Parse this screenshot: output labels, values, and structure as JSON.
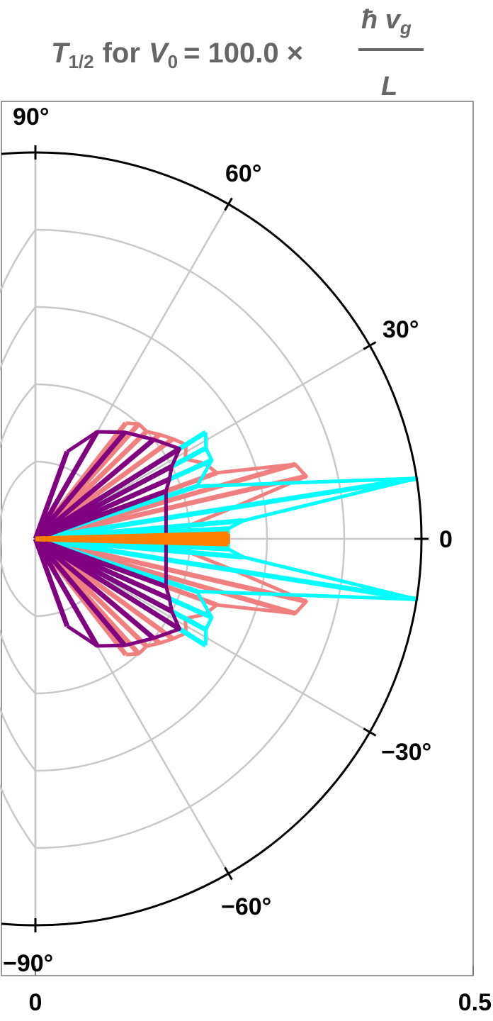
{
  "chart_data": {
    "type": "polar",
    "title": {
      "symbol": "T",
      "symbol_sub": "1/2",
      "for_text": "for",
      "var": "V",
      "var_sub": "0",
      "equals_value": "= 100.0 ×",
      "numerator": "ħ v",
      "numerator_sub": "g",
      "denominator": "L"
    },
    "angular_range_deg": [
      -90,
      90
    ],
    "radial_range": [
      0,
      0.5
    ],
    "angle_tick_labels": [
      "90°",
      "60°",
      "30°",
      "0",
      "−30°",
      "−60°",
      "−90°"
    ],
    "angle_ticks_deg": [
      90,
      60,
      30,
      0,
      -30,
      -60,
      -90
    ],
    "radial_tick_labels": [
      "0",
      "0.5"
    ],
    "radial_gridlines": [
      0.1,
      0.2,
      0.3,
      0.4
    ],
    "grid": true,
    "series": [
      {
        "color": "#f08080",
        "points": [
          {
            "theta": 52,
            "r": 0.19
          },
          {
            "theta": 48,
            "r": 0.2
          },
          {
            "theta": 44,
            "r": 0.2
          },
          {
            "theta": 40,
            "r": 0.21
          },
          {
            "theta": 36,
            "r": 0.22
          },
          {
            "theta": 32,
            "r": 0.23
          },
          {
            "theta": 28,
            "r": 0.22
          },
          {
            "theta": 24,
            "r": 0.24
          },
          {
            "theta": 20,
            "r": 0.25
          },
          {
            "theta": 16,
            "r": 0.35
          },
          {
            "theta": 13,
            "r": 0.36
          },
          {
            "theta": 9,
            "r": 0.26
          },
          {
            "theta": 5,
            "r": 0.2
          },
          {
            "theta": -5,
            "r": 0.2
          },
          {
            "theta": -9,
            "r": 0.26
          },
          {
            "theta": -13,
            "r": 0.36
          },
          {
            "theta": -16,
            "r": 0.35
          },
          {
            "theta": -20,
            "r": 0.25
          },
          {
            "theta": -24,
            "r": 0.24
          },
          {
            "theta": -28,
            "r": 0.22
          },
          {
            "theta": -32,
            "r": 0.23
          },
          {
            "theta": -36,
            "r": 0.22
          },
          {
            "theta": -40,
            "r": 0.21
          },
          {
            "theta": -44,
            "r": 0.2
          },
          {
            "theta": -48,
            "r": 0.2
          },
          {
            "theta": -52,
            "r": 0.19
          }
        ]
      },
      {
        "color": "#00ffff",
        "points": [
          {
            "theta": 32,
            "r": 0.26
          },
          {
            "theta": 28,
            "r": 0.25
          },
          {
            "theta": 24,
            "r": 0.25
          },
          {
            "theta": 18,
            "r": 0.22
          },
          {
            "theta": 9,
            "r": 0.5
          },
          {
            "theta": 5,
            "r": 0.27
          },
          {
            "theta": 3,
            "r": 0.25
          },
          {
            "theta": -3,
            "r": 0.25
          },
          {
            "theta": -5,
            "r": 0.27
          },
          {
            "theta": -9,
            "r": 0.5
          },
          {
            "theta": -18,
            "r": 0.22
          },
          {
            "theta": -24,
            "r": 0.25
          },
          {
            "theta": -28,
            "r": 0.25
          },
          {
            "theta": -32,
            "r": 0.26
          }
        ]
      },
      {
        "color": "#800080",
        "points": [
          {
            "theta": 70,
            "r": 0.12
          },
          {
            "theta": 60,
            "r": 0.16
          },
          {
            "theta": 50,
            "r": 0.18
          },
          {
            "theta": 40,
            "r": 0.2
          },
          {
            "theta": 32,
            "r": 0.22
          },
          {
            "theta": 28,
            "r": 0.2
          },
          {
            "theta": 24,
            "r": 0.19
          },
          {
            "theta": 20,
            "r": 0.18
          },
          {
            "theta": -20,
            "r": 0.18
          },
          {
            "theta": -24,
            "r": 0.19
          },
          {
            "theta": -28,
            "r": 0.2
          },
          {
            "theta": -32,
            "r": 0.22
          },
          {
            "theta": -40,
            "r": 0.2
          },
          {
            "theta": -50,
            "r": 0.18
          },
          {
            "theta": -60,
            "r": 0.16
          },
          {
            "theta": -70,
            "r": 0.12
          }
        ]
      },
      {
        "color": "#ff8000",
        "points": [
          {
            "theta": 1.5,
            "r": 0.25
          },
          {
            "theta": 0.8,
            "r": 0.25
          },
          {
            "theta": 0,
            "r": 0.25
          },
          {
            "theta": -0.8,
            "r": 0.25
          },
          {
            "theta": -1.5,
            "r": 0.25
          }
        ]
      }
    ]
  }
}
